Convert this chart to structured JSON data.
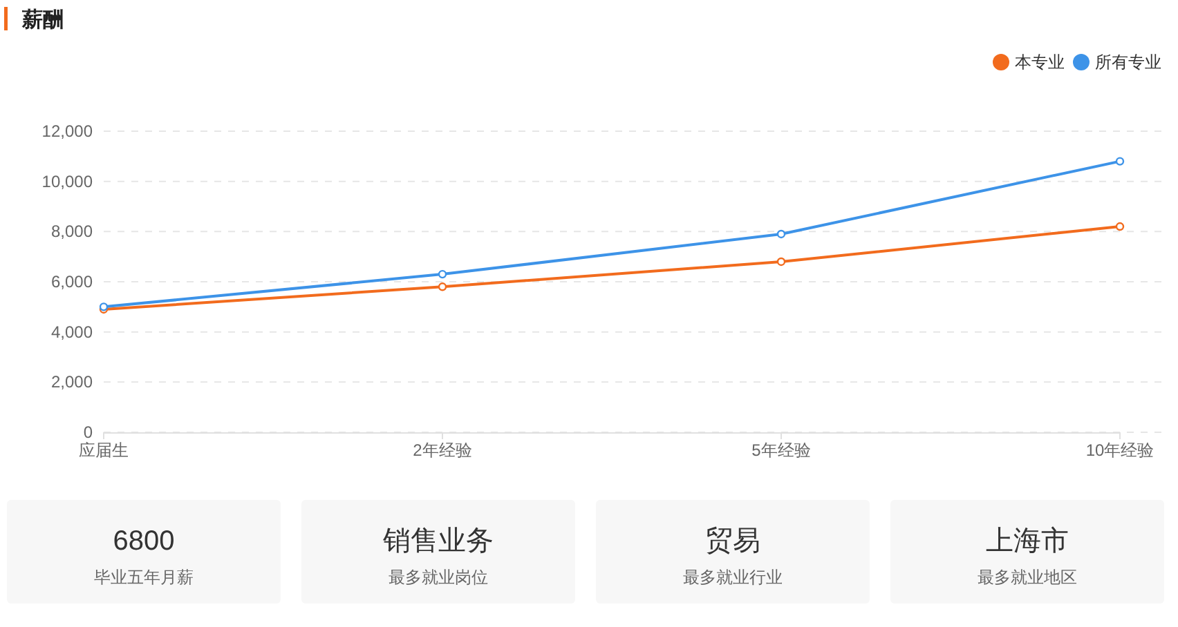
{
  "chart_data": [
    {
      "type": "line",
      "title": "薪酬",
      "categories": [
        "应届生",
        "2年经验",
        "5年经验",
        "10年经验"
      ],
      "series": [
        {
          "name": "本专业",
          "color": "#f26b1d",
          "values": [
            4900,
            5800,
            6800,
            8200
          ]
        },
        {
          "name": "所有专业",
          "color": "#3d93e8",
          "values": [
            5000,
            6300,
            7900,
            10800
          ]
        }
      ],
      "ylim": [
        0,
        12000
      ],
      "yticks": [
        0,
        {
          "value": 2000,
          "label": "2,000"
        },
        {
          "value": 4000,
          "label": "4,000"
        },
        {
          "value": 6000,
          "label": "6,000"
        },
        {
          "value": 8000,
          "label": "8,000"
        },
        {
          "value": 10000,
          "label": "10,000"
        },
        {
          "value": 12000,
          "label": "12,000"
        }
      ],
      "grid": "y",
      "legend": "top right",
      "marker": "circle",
      "line_style": "solid"
    },
    {
      "type": "other",
      "title": "6800",
      "subtitle": "毕业五年月薪"
    },
    {
      "type": "other",
      "title": "销售业务",
      "subtitle": "最多就业岗位"
    },
    {
      "type": "other",
      "title": "贸易",
      "subtitle": "最多就业行业"
    },
    {
      "type": "other",
      "title": "上海市",
      "subtitle": "最多就业地区"
    }
  ]
}
